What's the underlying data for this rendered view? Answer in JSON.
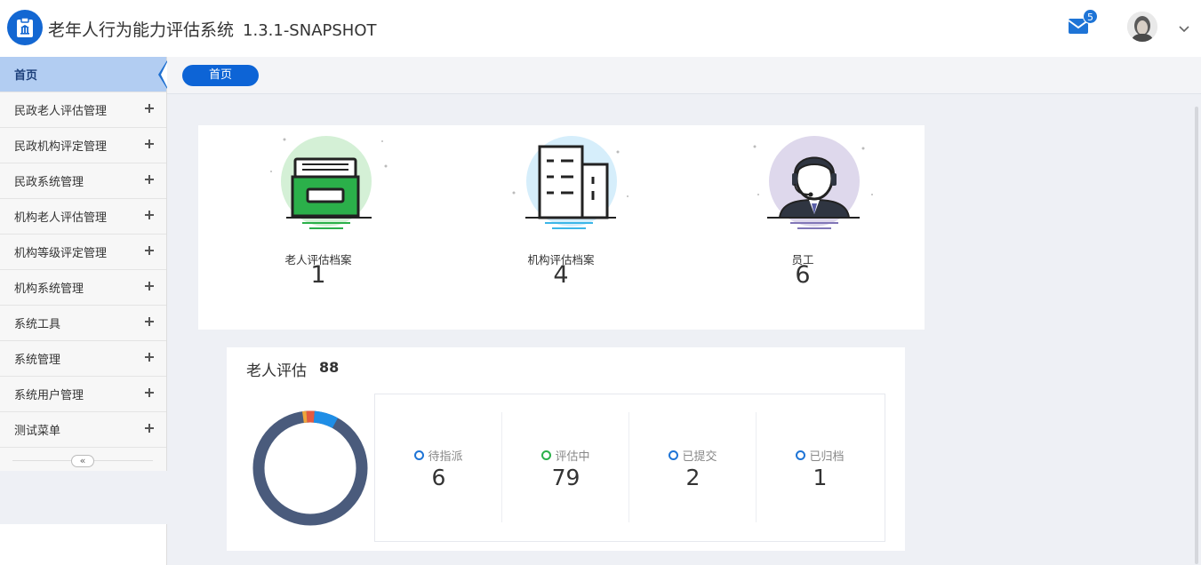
{
  "header": {
    "app_title": "老年人行为能力评估系统",
    "version": "1.3.1-SNAPSHOT",
    "mail_badge": "5"
  },
  "sidebar": {
    "items": [
      {
        "label": "首页",
        "active": true
      },
      {
        "label": "民政老人评估管理"
      },
      {
        "label": "民政机构评定管理"
      },
      {
        "label": "民政系统管理"
      },
      {
        "label": "机构老人评估管理"
      },
      {
        "label": "机构等级评定管理"
      },
      {
        "label": "机构系统管理"
      },
      {
        "label": "系统工具"
      },
      {
        "label": "系统管理"
      },
      {
        "label": "系统用户管理"
      },
      {
        "label": "测试菜单"
      }
    ],
    "collapse_label": "«"
  },
  "tabs": [
    {
      "label": "首页"
    }
  ],
  "summary": [
    {
      "label": "老人评估档案",
      "value": "1",
      "color": "#2bb04a"
    },
    {
      "label": "机构评估档案",
      "value": "4",
      "color": "#3cb6e8"
    },
    {
      "label": "员工",
      "value": "6",
      "color": "#8277b8"
    }
  ],
  "elder_assessment": {
    "title": "老人评估",
    "total": "88",
    "statuses": [
      {
        "label": "待指派",
        "value": "6",
        "color": "#1e74d6"
      },
      {
        "label": "评估中",
        "value": "79",
        "color": "#2bb04a"
      },
      {
        "label": "已提交",
        "value": "2",
        "color": "#1e74d6"
      },
      {
        "label": "已归档",
        "value": "1",
        "color": "#1e74d6"
      }
    ],
    "donut_colors": [
      "#1f8ee6",
      "#e55a3f",
      "#f0a53a",
      "#4a5b7c"
    ]
  }
}
